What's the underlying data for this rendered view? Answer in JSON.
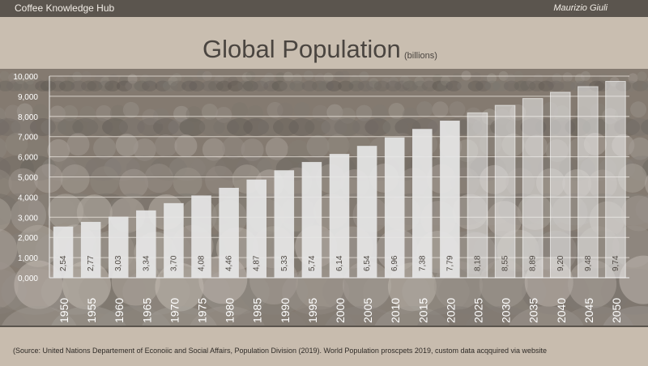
{
  "header": {
    "brand": "Coffee Knowledge Hub",
    "author": "Maurizio Giuli"
  },
  "chart_data": {
    "type": "bar",
    "title": "Global Population",
    "subtitle": "(billions)",
    "categories": [
      "1950",
      "1955",
      "1960",
      "1965",
      "1970",
      "1975",
      "1980",
      "1985",
      "1990",
      "1995",
      "2000",
      "2005",
      "2010",
      "2015",
      "2020",
      "2025",
      "2030",
      "2035",
      "2040",
      "2045",
      "2050"
    ],
    "values": [
      2.54,
      2.77,
      3.03,
      3.34,
      3.7,
      4.08,
      4.46,
      4.87,
      5.33,
      5.74,
      6.14,
      6.54,
      6.96,
      7.38,
      7.79,
      8.18,
      8.55,
      8.89,
      9.2,
      9.48,
      9.74
    ],
    "value_labels": [
      "2,54",
      "2,77",
      "3,03",
      "3,34",
      "3,70",
      "4,08",
      "4,46",
      "4,87",
      "5,33",
      "5,74",
      "6,14",
      "6,54",
      "6,96",
      "7,38",
      "7,79",
      "8,18",
      "8,55",
      "8,89",
      "9,20",
      "9,48",
      "9,74"
    ],
    "projected_from": "2025",
    "yticks": [
      "0,000",
      "1,000",
      "2,000",
      "3,000",
      "4,000",
      "5,000",
      "6,000",
      "7,000",
      "8,000",
      "9,000",
      "10,000"
    ],
    "ylim": [
      0,
      10
    ],
    "grid": true,
    "legend": "none",
    "colors": {
      "actual": "#e6e6e6",
      "projected": "#efefef",
      "panel": "#847a70"
    }
  },
  "footer": {
    "source": "(Source: United Nations Departement of Econoiic and Social Affairs, Population Division (2019).  World Population proscpets 2019, custom data acqquired via website"
  }
}
